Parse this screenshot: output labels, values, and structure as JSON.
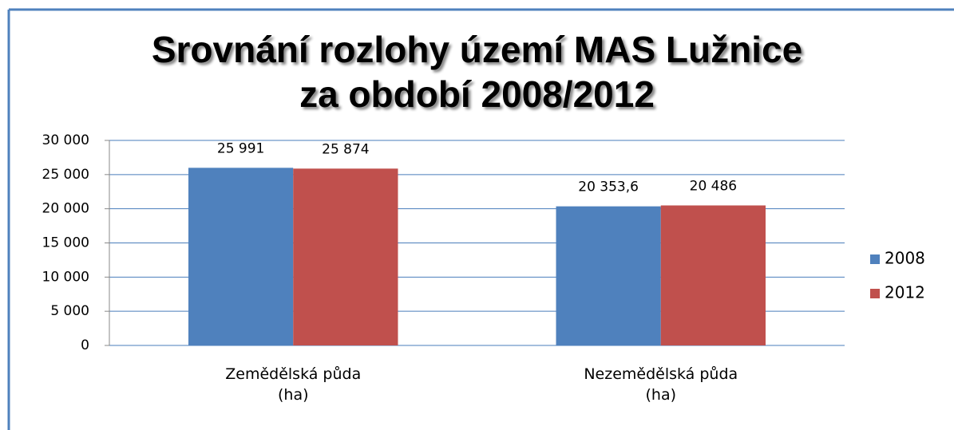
{
  "chart_data": {
    "type": "bar",
    "title": "Srovnání rozlohy území MAS Lužnice\nza období 2008/2012",
    "categories": [
      "Zemědělská půda\n(ha)",
      "Nezemědělská půda\n(ha)"
    ],
    "series": [
      {
        "name": "2008",
        "color": "#4f81bd",
        "values": [
          25991,
          20353.6
        ],
        "value_labels": [
          "25 991",
          "20 353,6"
        ]
      },
      {
        "name": "2012",
        "color": "#c0504d",
        "values": [
          25874,
          20486
        ],
        "value_labels": [
          "25 874",
          "20 486"
        ]
      }
    ],
    "ylim": [
      0,
      30000
    ],
    "yticks": [
      {
        "value": 0,
        "label": "0"
      },
      {
        "value": 5000,
        "label": "5 000"
      },
      {
        "value": 10000,
        "label": "10 000"
      },
      {
        "value": 15000,
        "label": "15 000"
      },
      {
        "value": 20000,
        "label": "20 000"
      },
      {
        "value": 25000,
        "label": "25 000"
      },
      {
        "value": 30000,
        "label": "30 000"
      }
    ],
    "grid": true,
    "legend": "right"
  }
}
